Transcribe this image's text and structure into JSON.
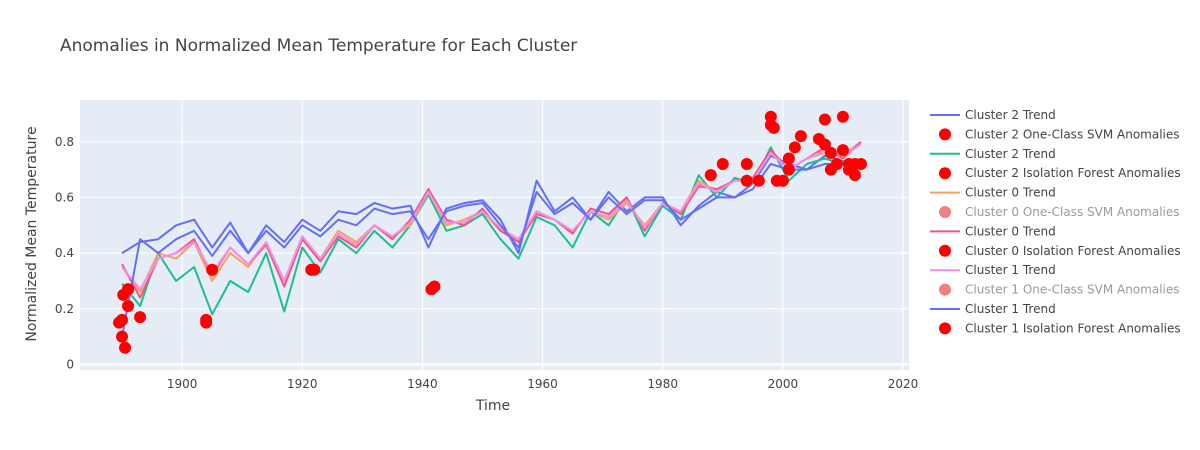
{
  "chart_data": {
    "type": "line",
    "title": "Anomalies in Normalized Mean Temperature for Each Cluster",
    "xlabel": "Time",
    "ylabel": "Normalized Mean Temperature",
    "xlim": [
      1883,
      2021
    ],
    "ylim": [
      -0.02,
      0.95
    ],
    "x_ticks": [
      1900,
      1920,
      1940,
      1960,
      1980,
      2000,
      2020
    ],
    "y_ticks": [
      0,
      0.2,
      0.4,
      0.6,
      0.8
    ],
    "grid": true,
    "legend_position": "right",
    "colors": {
      "plot_bg": "#E5ECF6",
      "grid": "#FFFFFF",
      "cluster2": "#636EFA",
      "cluster2_green": "#1CBE8F",
      "cluster0_orange": "#F7A15A",
      "cluster0_pink": "#F0587A",
      "cluster1_pinklight": "#F28EF0",
      "anomaly": "#FF0000",
      "anomaly_dim": "#F08080"
    },
    "series": [
      {
        "name": "Cluster 2 Trend",
        "kind": "line",
        "color": "#636EFA",
        "x": [
          1890,
          1893,
          1896,
          1899,
          1902,
          1905,
          1908,
          1911,
          1914,
          1917,
          1920,
          1923,
          1926,
          1929,
          1932,
          1935,
          1938,
          1941,
          1944,
          1947,
          1950,
          1953,
          1956,
          1959,
          1962,
          1965,
          1968,
          1971,
          1974,
          1977,
          1980,
          1983,
          1986,
          1989,
          1992,
          1995,
          1998,
          2001,
          2004,
          2007,
          2010,
          2013
        ],
        "y": [
          0.4,
          0.44,
          0.45,
          0.5,
          0.52,
          0.42,
          0.51,
          0.4,
          0.5,
          0.44,
          0.52,
          0.48,
          0.55,
          0.54,
          0.58,
          0.56,
          0.57,
          0.42,
          0.56,
          0.58,
          0.59,
          0.52,
          0.4,
          0.66,
          0.55,
          0.6,
          0.52,
          0.62,
          0.55,
          0.6,
          0.6,
          0.5,
          0.57,
          0.62,
          0.6,
          0.65,
          0.75,
          0.72,
          0.7,
          0.75,
          0.73,
          0.72
        ]
      },
      {
        "name": "Cluster 2 One-Class SVM Anomalies",
        "kind": "markers",
        "color": "#FF0000",
        "x": [
          1890,
          1891,
          1990,
          1994,
          1998,
          2003,
          2007,
          2010
        ],
        "y": [
          0.16,
          0.27,
          0.72,
          0.72,
          0.89,
          0.82,
          0.88,
          0.89
        ]
      },
      {
        "name": "Cluster 2 Trend",
        "kind": "line",
        "color": "#1CBE8F",
        "x": [
          1890,
          1893,
          1896,
          1899,
          1902,
          1905,
          1908,
          1911,
          1914,
          1917,
          1920,
          1923,
          1926,
          1929,
          1932,
          1935,
          1938,
          1941,
          1944,
          1947,
          1950,
          1953,
          1956,
          1959,
          1962,
          1965,
          1968,
          1971,
          1974,
          1977,
          1980,
          1983,
          1986,
          1989,
          1992,
          1995,
          1998,
          2001,
          2004,
          2007,
          2010,
          2013
        ],
        "y": [
          0.29,
          0.21,
          0.4,
          0.3,
          0.35,
          0.18,
          0.3,
          0.26,
          0.4,
          0.19,
          0.42,
          0.33,
          0.45,
          0.4,
          0.48,
          0.42,
          0.5,
          0.61,
          0.48,
          0.5,
          0.54,
          0.45,
          0.38,
          0.53,
          0.5,
          0.42,
          0.55,
          0.5,
          0.6,
          0.46,
          0.57,
          0.52,
          0.68,
          0.6,
          0.67,
          0.65,
          0.78,
          0.66,
          0.72,
          0.74,
          0.72,
          0.72
        ]
      },
      {
        "name": "Cluster 2 Isolation Forest Anomalies",
        "kind": "markers",
        "color": "#FF0000",
        "x": [
          1890,
          1891,
          1893,
          1904,
          1922,
          1942,
          1988
        ],
        "y": [
          0.1,
          0.21,
          0.17,
          0.16,
          0.34,
          0.28,
          0.68
        ]
      },
      {
        "name": "Cluster 0 Trend",
        "kind": "line",
        "color": "#F7A15A",
        "x": [
          1890,
          1893,
          1896,
          1899,
          1902,
          1905,
          1908,
          1911,
          1914,
          1917,
          1920,
          1923,
          1926,
          1929,
          1932,
          1935,
          1938,
          1941,
          1944,
          1947,
          1950,
          1953,
          1956,
          1959,
          1962,
          1965,
          1968,
          1971,
          1974,
          1977,
          1980,
          1983,
          1986,
          1989,
          1992,
          1995,
          1998,
          2001,
          2004,
          2007,
          2010,
          2013
        ],
        "y": [
          0.35,
          0.26,
          0.4,
          0.38,
          0.44,
          0.3,
          0.4,
          0.35,
          0.44,
          0.3,
          0.46,
          0.38,
          0.48,
          0.44,
          0.5,
          0.46,
          0.5,
          0.62,
          0.5,
          0.52,
          0.55,
          0.48,
          0.45,
          0.55,
          0.52,
          0.48,
          0.55,
          0.52,
          0.58,
          0.5,
          0.58,
          0.55,
          0.66,
          0.62,
          0.66,
          0.66,
          0.76,
          0.7,
          0.74,
          0.76,
          0.75,
          0.8
        ]
      },
      {
        "name": "Cluster 0 One-Class SVM Anomalies",
        "kind": "markers",
        "color": "#F08080",
        "dim": true,
        "x": [],
        "y": []
      },
      {
        "name": "Cluster 0 Trend",
        "kind": "line",
        "color": "#F0587A",
        "x": [
          1890,
          1893,
          1896,
          1899,
          1902,
          1905,
          1908,
          1911,
          1914,
          1917,
          1920,
          1923,
          1926,
          1929,
          1932,
          1935,
          1938,
          1941,
          1944,
          1947,
          1950,
          1953,
          1956,
          1959,
          1962,
          1965,
          1968,
          1971,
          1974,
          1977,
          1980,
          1983,
          1986,
          1989,
          1992,
          1995,
          1998,
          2001,
          2004,
          2007,
          2010,
          2013
        ],
        "y": [
          0.36,
          0.24,
          0.38,
          0.4,
          0.45,
          0.32,
          0.42,
          0.36,
          0.43,
          0.28,
          0.45,
          0.37,
          0.46,
          0.42,
          0.5,
          0.45,
          0.52,
          0.63,
          0.52,
          0.5,
          0.56,
          0.48,
          0.44,
          0.54,
          0.52,
          0.47,
          0.56,
          0.54,
          0.6,
          0.48,
          0.58,
          0.54,
          0.64,
          0.63,
          0.66,
          0.67,
          0.77,
          0.7,
          0.74,
          0.78,
          0.74,
          0.8
        ]
      },
      {
        "name": "Cluster 0 Isolation Forest Anomalies",
        "kind": "markers",
        "color": "#FF0000",
        "x": [
          1889.5,
          1890.5,
          1904,
          1905,
          1921.5,
          1941.5,
          1996,
          1999,
          2000,
          2001,
          2008,
          2009,
          2011,
          2012
        ],
        "y": [
          0.15,
          0.06,
          0.15,
          0.34,
          0.34,
          0.27,
          0.66,
          0.66,
          0.66,
          0.7,
          0.7,
          0.72,
          0.7,
          0.68
        ]
      },
      {
        "name": "Cluster 1 Trend",
        "kind": "line",
        "color": "#F28EF0",
        "x": [
          1890,
          1893,
          1896,
          1899,
          1902,
          1905,
          1908,
          1911,
          1914,
          1917,
          1920,
          1923,
          1926,
          1929,
          1932,
          1935,
          1938,
          1941,
          1944,
          1947,
          1950,
          1953,
          1956,
          1959,
          1962,
          1965,
          1968,
          1971,
          1974,
          1977,
          1980,
          1983,
          1986,
          1989,
          1992,
          1995,
          1998,
          2001,
          2004,
          2007,
          2010,
          2013
        ],
        "y": [
          0.35,
          0.27,
          0.38,
          0.4,
          0.44,
          0.33,
          0.42,
          0.36,
          0.44,
          0.3,
          0.46,
          0.38,
          0.47,
          0.43,
          0.5,
          0.46,
          0.51,
          0.62,
          0.51,
          0.51,
          0.55,
          0.49,
          0.45,
          0.55,
          0.52,
          0.48,
          0.55,
          0.53,
          0.59,
          0.49,
          0.58,
          0.55,
          0.65,
          0.62,
          0.66,
          0.66,
          0.76,
          0.7,
          0.74,
          0.77,
          0.75,
          0.79
        ]
      },
      {
        "name": "Cluster 1 One-Class SVM Anomalies",
        "kind": "markers",
        "color": "#F08080",
        "dim": true,
        "x": [],
        "y": []
      },
      {
        "name": "Cluster 1 Trend",
        "kind": "line",
        "color": "#636EFA",
        "x": [
          1890,
          1893,
          1896,
          1899,
          1902,
          1905,
          1908,
          1911,
          1914,
          1917,
          1920,
          1923,
          1926,
          1929,
          1932,
          1935,
          1938,
          1941,
          1944,
          1947,
          1950,
          1953,
          1956,
          1959,
          1962,
          1965,
          1968,
          1971,
          1974,
          1977,
          1980,
          1983,
          1986,
          1989,
          1992,
          1995,
          1998,
          2001,
          2004,
          2007,
          2010,
          2013
        ],
        "y": [
          0.1,
          0.45,
          0.4,
          0.45,
          0.48,
          0.39,
          0.48,
          0.4,
          0.48,
          0.42,
          0.5,
          0.46,
          0.52,
          0.5,
          0.56,
          0.54,
          0.55,
          0.45,
          0.55,
          0.57,
          0.58,
          0.5,
          0.42,
          0.62,
          0.54,
          0.58,
          0.52,
          0.6,
          0.54,
          0.59,
          0.59,
          0.52,
          0.56,
          0.6,
          0.6,
          0.63,
          0.72,
          0.7,
          0.7,
          0.72,
          0.72,
          0.72
        ]
      },
      {
        "name": "Cluster 1 Isolation Forest Anomalies",
        "kind": "markers",
        "color": "#FF0000",
        "x": [
          1890.2,
          1891,
          1994,
          1998,
          1998.5,
          2001,
          2002,
          2006,
          2007,
          2008,
          2010,
          2011,
          2012,
          2013
        ],
        "y": [
          0.25,
          0.27,
          0.66,
          0.86,
          0.85,
          0.74,
          0.78,
          0.81,
          0.79,
          0.76,
          0.77,
          0.72,
          0.72,
          0.72
        ]
      }
    ]
  }
}
